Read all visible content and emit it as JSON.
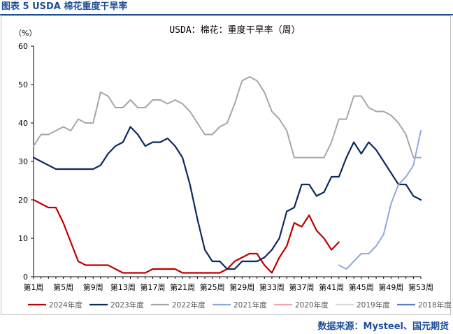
{
  "header": {
    "figure_title": "图表 5 USDA 棉花重度干旱率",
    "source": "数据来源：Mysteel、国元期货"
  },
  "chart_data": {
    "type": "line",
    "title": "USDA：棉花：重度干旱率（周）",
    "ylabel": "（%）",
    "xlabel": "",
    "ylim": [
      0,
      60
    ],
    "yticks": [
      0,
      10,
      20,
      30,
      40,
      50,
      60
    ],
    "xlim": [
      1,
      53
    ],
    "xticks": [
      {
        "week": 1,
        "label": "第1周"
      },
      {
        "week": 5,
        "label": "第5周"
      },
      {
        "week": 9,
        "label": "第9周"
      },
      {
        "week": 13,
        "label": "第13周"
      },
      {
        "week": 17,
        "label": "第17周"
      },
      {
        "week": 21,
        "label": "第21周"
      },
      {
        "week": 25,
        "label": "第25周"
      },
      {
        "week": 29,
        "label": "第29周"
      },
      {
        "week": 33,
        "label": "第33周"
      },
      {
        "week": 37,
        "label": "第37周"
      },
      {
        "week": 41,
        "label": "第41周"
      },
      {
        "week": 45,
        "label": "第45周"
      },
      {
        "week": 49,
        "label": "第49周"
      },
      {
        "week": 53,
        "label": "第53周"
      }
    ],
    "grid": false,
    "legend": "bottom",
    "series": [
      {
        "name": "2024年度",
        "color": "#c00000",
        "width": 2.2,
        "points": [
          [
            1,
            20
          ],
          [
            2,
            19
          ],
          [
            3,
            18
          ],
          [
            4,
            18
          ],
          [
            5,
            14
          ],
          [
            6,
            9
          ],
          [
            7,
            4
          ],
          [
            8,
            3
          ],
          [
            9,
            3
          ],
          [
            10,
            3
          ],
          [
            11,
            3
          ],
          [
            12,
            2
          ],
          [
            13,
            1
          ],
          [
            14,
            1
          ],
          [
            15,
            1
          ],
          [
            16,
            1
          ],
          [
            17,
            2
          ],
          [
            18,
            2
          ],
          [
            19,
            2
          ],
          [
            20,
            2
          ],
          [
            21,
            1
          ],
          [
            22,
            1
          ],
          [
            23,
            1
          ],
          [
            24,
            1
          ],
          [
            25,
            1
          ],
          [
            26,
            1
          ],
          [
            27,
            2
          ],
          [
            28,
            4
          ],
          [
            29,
            5
          ],
          [
            30,
            6
          ],
          [
            31,
            6
          ],
          [
            32,
            3
          ],
          [
            33,
            1
          ],
          [
            34,
            5
          ],
          [
            35,
            8
          ],
          [
            36,
            14
          ],
          [
            37,
            13
          ],
          [
            38,
            16
          ],
          [
            39,
            12
          ],
          [
            40,
            10
          ],
          [
            41,
            7
          ],
          [
            42,
            9
          ]
        ]
      },
      {
        "name": "2023年度",
        "color": "#0c2a62",
        "width": 2.2,
        "points": [
          [
            1,
            31
          ],
          [
            2,
            30
          ],
          [
            3,
            29
          ],
          [
            4,
            28
          ],
          [
            5,
            28
          ],
          [
            6,
            28
          ],
          [
            7,
            28
          ],
          [
            8,
            28
          ],
          [
            9,
            28
          ],
          [
            10,
            29
          ],
          [
            11,
            32
          ],
          [
            12,
            34
          ],
          [
            13,
            35
          ],
          [
            14,
            39
          ],
          [
            15,
            37
          ],
          [
            16,
            34
          ],
          [
            17,
            35
          ],
          [
            18,
            35
          ],
          [
            19,
            36
          ],
          [
            20,
            34
          ],
          [
            21,
            31
          ],
          [
            22,
            24
          ],
          [
            23,
            15
          ],
          [
            24,
            7
          ],
          [
            25,
            4
          ],
          [
            26,
            4
          ],
          [
            27,
            2
          ],
          [
            28,
            2
          ],
          [
            29,
            4
          ],
          [
            30,
            4
          ],
          [
            31,
            4
          ],
          [
            32,
            5
          ],
          [
            33,
            7
          ],
          [
            34,
            10
          ],
          [
            35,
            17
          ],
          [
            36,
            18
          ],
          [
            37,
            24
          ],
          [
            38,
            24
          ],
          [
            39,
            21
          ],
          [
            40,
            22
          ],
          [
            41,
            26
          ],
          [
            42,
            26
          ],
          [
            43,
            31
          ],
          [
            44,
            35
          ],
          [
            45,
            32
          ],
          [
            46,
            35
          ],
          [
            47,
            33
          ],
          [
            48,
            30
          ],
          [
            49,
            27
          ],
          [
            50,
            24
          ],
          [
            51,
            24
          ],
          [
            52,
            21
          ],
          [
            53,
            20
          ]
        ]
      },
      {
        "name": "2022年度",
        "color": "#a6a6a6",
        "width": 2,
        "points": [
          [
            1,
            34
          ],
          [
            2,
            37
          ],
          [
            3,
            37
          ],
          [
            4,
            38
          ],
          [
            5,
            39
          ],
          [
            6,
            38
          ],
          [
            7,
            41
          ],
          [
            8,
            40
          ],
          [
            9,
            40
          ],
          [
            10,
            48
          ],
          [
            11,
            47
          ],
          [
            12,
            44
          ],
          [
            13,
            44
          ],
          [
            14,
            46
          ],
          [
            15,
            44
          ],
          [
            16,
            44
          ],
          [
            17,
            46
          ],
          [
            18,
            46
          ],
          [
            19,
            45
          ],
          [
            20,
            46
          ],
          [
            21,
            45
          ],
          [
            22,
            43
          ],
          [
            23,
            40
          ],
          [
            24,
            37
          ],
          [
            25,
            37
          ],
          [
            26,
            39
          ],
          [
            27,
            40
          ],
          [
            28,
            45
          ],
          [
            29,
            51
          ],
          [
            30,
            52
          ],
          [
            31,
            51
          ],
          [
            32,
            48
          ],
          [
            33,
            43
          ],
          [
            34,
            41
          ],
          [
            35,
            38
          ],
          [
            36,
            31
          ],
          [
            37,
            31
          ],
          [
            38,
            31
          ],
          [
            39,
            31
          ],
          [
            40,
            31
          ],
          [
            41,
            35
          ],
          [
            42,
            41
          ],
          [
            43,
            41
          ],
          [
            44,
            47
          ],
          [
            45,
            47
          ],
          [
            46,
            44
          ],
          [
            47,
            43
          ],
          [
            48,
            43
          ],
          [
            49,
            42
          ],
          [
            50,
            40
          ],
          [
            51,
            37
          ],
          [
            52,
            31
          ],
          [
            53,
            31
          ]
        ]
      },
      {
        "name": "2021年度",
        "color": "#8ea9db",
        "width": 2,
        "points": [
          [
            42,
            3
          ],
          [
            43,
            2
          ],
          [
            44,
            4
          ],
          [
            45,
            6
          ],
          [
            46,
            6
          ],
          [
            47,
            8
          ],
          [
            48,
            11
          ],
          [
            49,
            19
          ],
          [
            50,
            24
          ],
          [
            51,
            26
          ],
          [
            52,
            29
          ],
          [
            53,
            38
          ]
        ]
      },
      {
        "name": "2020年度",
        "color": "#f4a3a8",
        "width": 2,
        "points": []
      },
      {
        "name": "2019年度",
        "color": "#d9d9d9",
        "width": 2,
        "points": []
      },
      {
        "name": "2018年度",
        "color": "#5b7fc0",
        "width": 2,
        "points": []
      }
    ]
  }
}
